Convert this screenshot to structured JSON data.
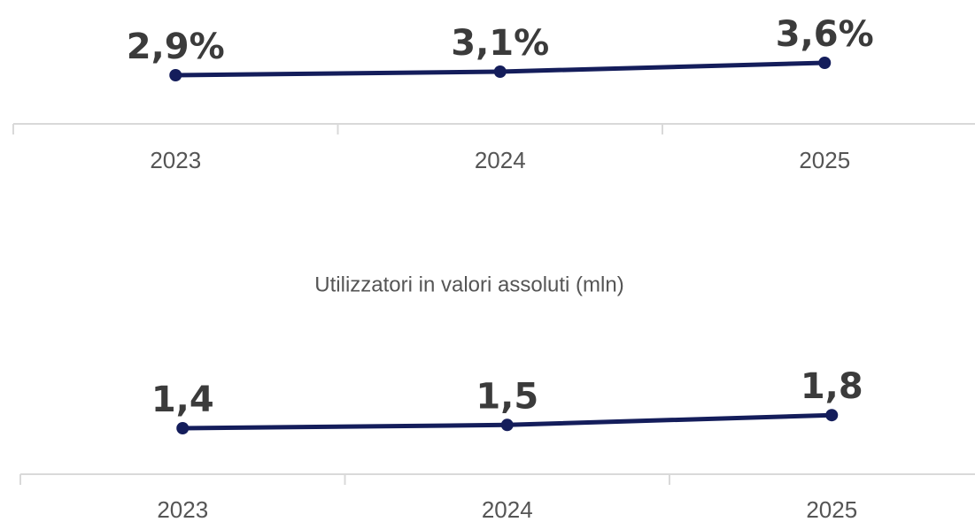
{
  "chart_data": [
    {
      "type": "line",
      "categories": [
        "2023",
        "2024",
        "2025"
      ],
      "values": [
        2.9,
        3.1,
        3.6
      ],
      "value_labels": [
        "2,9%",
        "3,1%",
        "3,6%"
      ],
      "color": "#141d5b"
    },
    {
      "type": "line",
      "title": "Utilizzatori in valori assoluti (mln)",
      "categories": [
        "2023",
        "2024",
        "2025"
      ],
      "values": [
        1.4,
        1.5,
        1.8
      ],
      "value_labels": [
        "1,4",
        "1,5",
        "1,8"
      ],
      "color": "#141d5b"
    }
  ]
}
